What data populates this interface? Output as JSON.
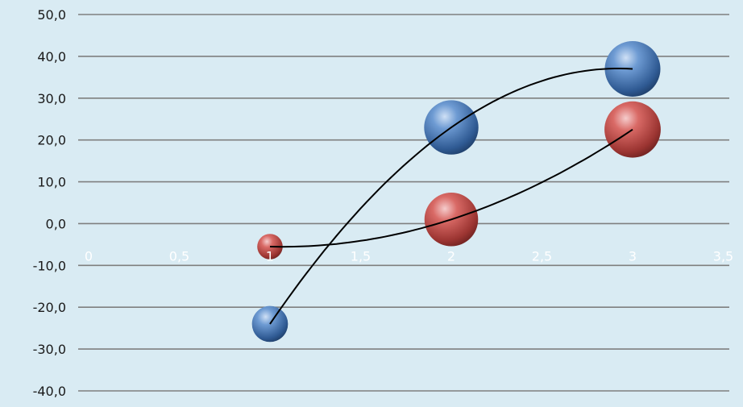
{
  "chart_data": {
    "type": "scatter",
    "subtype": "bubble",
    "title": "",
    "xlabel": "",
    "ylabel": "",
    "xlim": [
      0,
      3.5
    ],
    "ylim": [
      -40,
      50
    ],
    "x_ticks": [
      "0",
      "0,5",
      "1",
      "1,5",
      "2",
      "2,5",
      "3",
      "3,5"
    ],
    "y_ticks": [
      "50,0",
      "40,0",
      "30,0",
      "20,0",
      "10,0",
      "0,0",
      "-10,0",
      "-20,0",
      "-30,0",
      "-40,0"
    ],
    "grid": true,
    "legend": "none",
    "series": [
      {
        "color": "#4f81bd",
        "x": [
          1,
          2,
          3
        ],
        "y": [
          -24,
          23,
          37
        ],
        "size": [
          1.8,
          4.1,
          4.3
        ],
        "trendline": "polynomial"
      },
      {
        "color": "#c0504d",
        "x": [
          1,
          2,
          3
        ],
        "y": [
          -5.5,
          1,
          22.5
        ],
        "size": [
          0.9,
          4.0,
          4.4
        ],
        "trendline": "polynomial"
      }
    ]
  }
}
